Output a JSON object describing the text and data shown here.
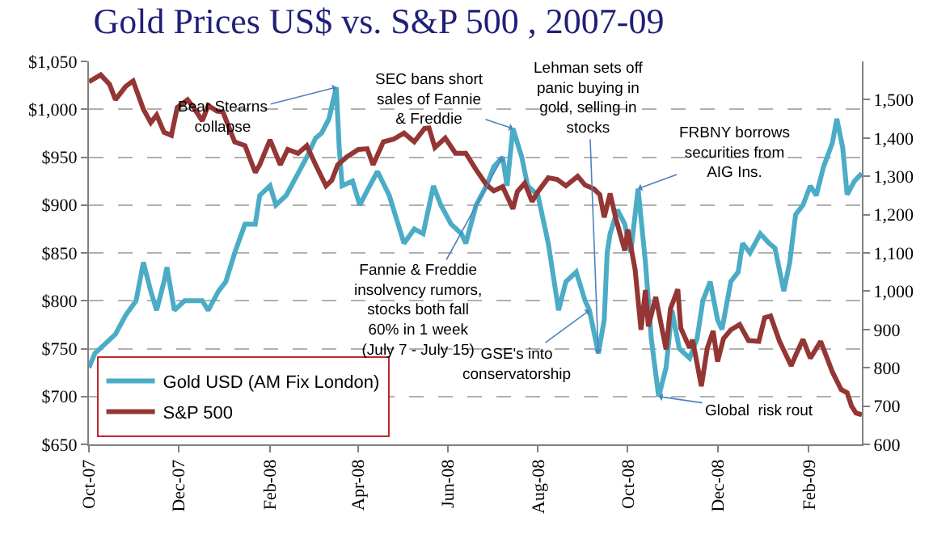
{
  "chart_data": {
    "type": "line",
    "title": "Gold Prices US$ vs. S&P 500 , 2007-09",
    "xlim": [
      "2007-10-01",
      "2009-03-09"
    ],
    "xticks": [
      {
        "value": "2007-10-01",
        "label": "Oct-07"
      },
      {
        "value": "2007-12-01",
        "label": "Dec-07"
      },
      {
        "value": "2008-02-01",
        "label": "Feb-08"
      },
      {
        "value": "2008-04-01",
        "label": "Apr-08"
      },
      {
        "value": "2008-06-01",
        "label": "Jun-08"
      },
      {
        "value": "2008-08-01",
        "label": "Aug-08"
      },
      {
        "value": "2008-10-01",
        "label": "Oct-08"
      },
      {
        "value": "2008-12-01",
        "label": "Dec-08"
      },
      {
        "value": "2009-02-01",
        "label": "Feb-09"
      }
    ],
    "ylim": [
      650,
      1050
    ],
    "yticks": [
      {
        "value": 650,
        "label": "$650"
      },
      {
        "value": 700,
        "label": "$700"
      },
      {
        "value": 750,
        "label": "$750"
      },
      {
        "value": 800,
        "label": "$800"
      },
      {
        "value": 850,
        "label": "$850"
      },
      {
        "value": 900,
        "label": "$900"
      },
      {
        "value": 950,
        "label": "$950"
      },
      {
        "value": 1000,
        "label": "$1,000"
      },
      {
        "value": 1050,
        "label": "$1,050"
      }
    ],
    "y2lim": [
      600,
      1600
    ],
    "y2ticks": [
      600,
      700,
      800,
      900,
      {
        "value": 1000,
        "label": "1,000"
      },
      {
        "value": 1100,
        "label": "1,100"
      },
      {
        "value": 1200,
        "label": "1,200"
      },
      {
        "value": 1300,
        "label": "1,300"
      },
      {
        "value": 1400,
        "label": "1,400"
      },
      {
        "value": 1500,
        "label": "1,500"
      }
    ],
    "grid": "y",
    "legend": "bottom left",
    "marker": "none",
    "line_style": "solid",
    "series": [
      {
        "name": "Gold USD (AM Fix London)",
        "color": "#4bacc6",
        "x": [
          "2007-10-01",
          "2007-10-05",
          "2007-10-12",
          "2007-10-19",
          "2007-10-26",
          "2007-11-02",
          "2007-11-07",
          "2007-11-12",
          "2007-11-16",
          "2007-11-21",
          "2007-11-23",
          "2007-11-28",
          "2007-12-05",
          "2007-12-12",
          "2007-12-17",
          "2007-12-21",
          "2007-12-28",
          "2008-01-02",
          "2008-01-08",
          "2008-01-15",
          "2008-01-22",
          "2008-01-25",
          "2008-02-01",
          "2008-02-05",
          "2008-02-12",
          "2008-02-19",
          "2008-02-26",
          "2008-03-03",
          "2008-03-07",
          "2008-03-12",
          "2008-03-17",
          "2008-03-19",
          "2008-03-21",
          "2008-03-28",
          "2008-04-02",
          "2008-04-07",
          "2008-04-14",
          "2008-04-22",
          "2008-04-28",
          "2008-05-02",
          "2008-05-09",
          "2008-05-15",
          "2008-05-22",
          "2008-05-27",
          "2008-06-03",
          "2008-06-10",
          "2008-06-13",
          "2008-06-20",
          "2008-06-27",
          "2008-07-02",
          "2008-07-08",
          "2008-07-11",
          "2008-07-15",
          "2008-07-21",
          "2008-07-25",
          "2008-08-01",
          "2008-08-08",
          "2008-08-15",
          "2008-08-20",
          "2008-08-27",
          "2008-09-02",
          "2008-09-05",
          "2008-09-11",
          "2008-09-15",
          "2008-09-17",
          "2008-09-19",
          "2008-09-24",
          "2008-09-29",
          "2008-10-03",
          "2008-10-08",
          "2008-10-13",
          "2008-10-17",
          "2008-10-22",
          "2008-10-27",
          "2008-10-31",
          "2008-11-05",
          "2008-11-12",
          "2008-11-17",
          "2008-11-21",
          "2008-11-26",
          "2008-12-01",
          "2008-12-04",
          "2008-12-10",
          "2008-12-15",
          "2008-12-18",
          "2008-12-23",
          "2008-12-30",
          "2009-01-05",
          "2009-01-09",
          "2009-01-15",
          "2009-01-19",
          "2009-01-23",
          "2009-01-28",
          "2009-02-02",
          "2009-02-06",
          "2009-02-11",
          "2009-02-17",
          "2009-02-20",
          "2009-02-24",
          "2009-02-27",
          "2009-03-04",
          "2009-03-09"
        ],
        "values": [
          730,
          745,
          755,
          765,
          785,
          800,
          840,
          810,
          790,
          820,
          835,
          790,
          800,
          800,
          800,
          790,
          810,
          820,
          850,
          880,
          880,
          910,
          920,
          900,
          910,
          930,
          950,
          970,
          975,
          990,
          1023,
          960,
          920,
          925,
          900,
          915,
          935,
          910,
          880,
          860,
          875,
          870,
          920,
          900,
          880,
          870,
          860,
          900,
          920,
          940,
          950,
          920,
          980,
          950,
          920,
          910,
          860,
          790,
          820,
          830,
          800,
          790,
          745,
          780,
          850,
          870,
          895,
          880,
          850,
          917,
          840,
          760,
          700,
          730,
          790,
          750,
          740,
          760,
          800,
          820,
          780,
          770,
          820,
          830,
          860,
          850,
          870,
          860,
          855,
          810,
          840,
          890,
          900,
          920,
          910,
          940,
          965,
          990,
          960,
          911,
          925,
          933
        ]
      },
      {
        "name": "S&P 500",
        "color": "#943634",
        "axis": "y2",
        "x": [
          "2007-10-01",
          "2007-10-09",
          "2007-10-15",
          "2007-10-19",
          "2007-10-26",
          "2007-10-31",
          "2007-11-07",
          "2007-11-12",
          "2007-11-16",
          "2007-11-21",
          "2007-11-26",
          "2007-11-30",
          "2007-12-07",
          "2007-12-11",
          "2007-12-17",
          "2007-12-21",
          "2007-12-27",
          "2007-12-31",
          "2008-01-08",
          "2008-01-15",
          "2008-01-22",
          "2008-01-25",
          "2008-02-01",
          "2008-02-08",
          "2008-02-13",
          "2008-02-20",
          "2008-02-26",
          "2008-03-03",
          "2008-03-10",
          "2008-03-14",
          "2008-03-18",
          "2008-03-24",
          "2008-04-01",
          "2008-04-07",
          "2008-04-11",
          "2008-04-18",
          "2008-04-25",
          "2008-05-02",
          "2008-05-09",
          "2008-05-16",
          "2008-05-19",
          "2008-05-23",
          "2008-05-30",
          "2008-06-06",
          "2008-06-13",
          "2008-06-20",
          "2008-06-27",
          "2008-07-02",
          "2008-07-08",
          "2008-07-15",
          "2008-07-18",
          "2008-07-23",
          "2008-07-28",
          "2008-08-01",
          "2008-08-08",
          "2008-08-14",
          "2008-08-20",
          "2008-08-28",
          "2008-09-02",
          "2008-09-08",
          "2008-09-12",
          "2008-09-15",
          "2008-09-19",
          "2008-09-23",
          "2008-09-29",
          "2008-10-01",
          "2008-10-06",
          "2008-10-10",
          "2008-10-13",
          "2008-10-15",
          "2008-10-20",
          "2008-10-27",
          "2008-10-30",
          "2008-11-04",
          "2008-11-06",
          "2008-11-12",
          "2008-11-14",
          "2008-11-20",
          "2008-11-24",
          "2008-11-28",
          "2008-12-01",
          "2008-12-05",
          "2008-12-10",
          "2008-12-16",
          "2008-12-22",
          "2008-12-29",
          "2009-01-02",
          "2009-01-06",
          "2009-01-12",
          "2009-01-20",
          "2009-01-23",
          "2009-01-28",
          "2009-02-02",
          "2009-02-09",
          "2009-02-17",
          "2009-02-23",
          "2009-02-27",
          "2009-03-02",
          "2009-03-05",
          "2009-03-09"
        ],
        "values": [
          1547,
          1565,
          1540,
          1500,
          1535,
          1549,
          1475,
          1440,
          1460,
          1415,
          1407,
          1480,
          1500,
          1480,
          1445,
          1485,
          1470,
          1468,
          1390,
          1380,
          1310,
          1330,
          1395,
          1330,
          1370,
          1360,
          1380,
          1330,
          1275,
          1290,
          1330,
          1350,
          1370,
          1372,
          1330,
          1390,
          1397,
          1413,
          1390,
          1425,
          1426,
          1375,
          1400,
          1360,
          1360,
          1317,
          1278,
          1262,
          1273,
          1215,
          1260,
          1282,
          1234,
          1260,
          1296,
          1292,
          1275,
          1300,
          1277,
          1267,
          1252,
          1193,
          1255,
          1188,
          1106,
          1161,
          1056,
          899,
          1003,
          908,
          985,
          848,
          954,
          1005,
          904,
          852,
          873,
          752,
          851,
          896,
          816,
          876,
          899,
          913,
          871,
          869,
          931,
          935,
          870,
          805,
          832,
          874,
          825,
          869,
          789,
          743,
          735,
          700,
          682,
          677
        ]
      }
    ],
    "annotations": [
      {
        "text": "Bear Stearns\ncollapse",
        "x": "2008-03-17",
        "y": 1023
      },
      {
        "text": "SEC bans short\nsales of Fannie\n& Freddie",
        "x": "2008-07-15",
        "y": 980
      },
      {
        "text": "Fannie & Freddie\ninsolvency rumors,\nstocks both fall\n60% in 1 week\n(July 7 - July 15)",
        "x": "2008-07-08",
        "y": 950
      },
      {
        "text": "Lehman sets off\npanic buying in\ngold, selling in\nstocks",
        "x": "2008-09-11",
        "y": 745
      },
      {
        "text": "FRBNY borrows\nsecurities from\nAIG Ins.",
        "x": "2008-10-08",
        "y": 917
      },
      {
        "text": "GSE's into\nconservatorship",
        "x": "2008-09-05",
        "y": 790
      },
      {
        "text": "Global  risk rout",
        "x": "2008-10-22",
        "y": 700
      }
    ]
  }
}
